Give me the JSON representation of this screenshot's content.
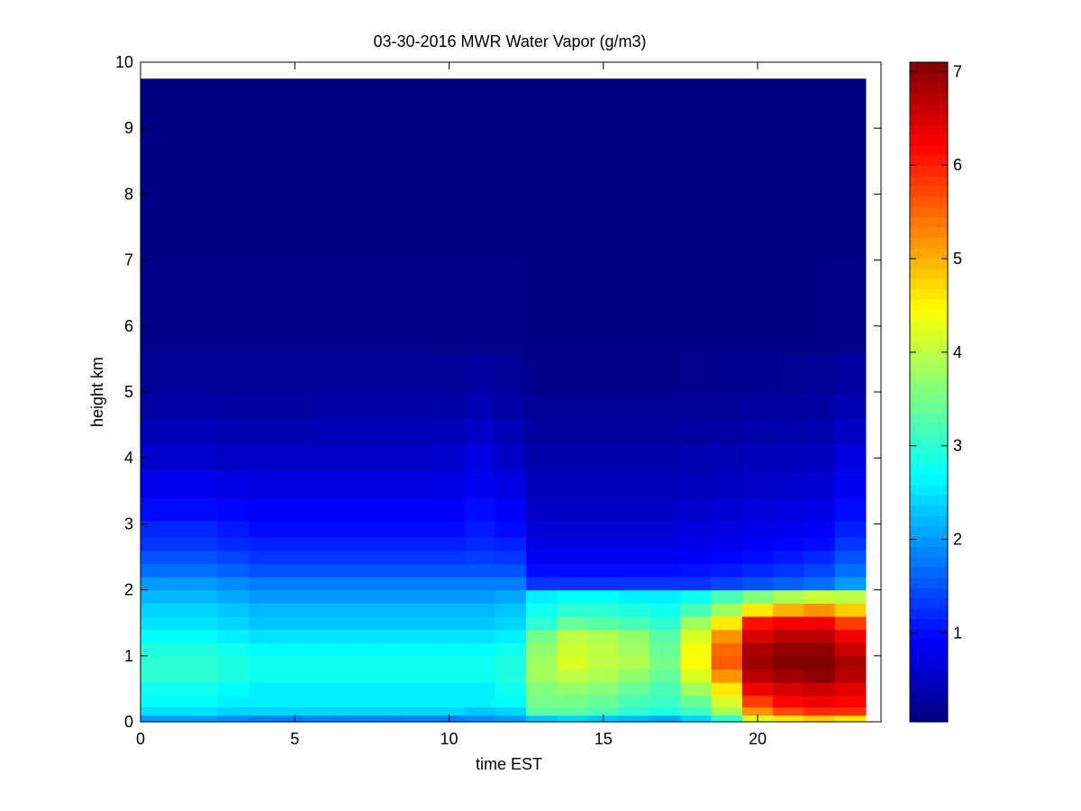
{
  "chart_data": {
    "type": "heatmap",
    "title": "03-30-2016 MWR Water Vapor (g/m3)",
    "xlabel": "time EST",
    "ylabel": "height km",
    "xlim": [
      0,
      24
    ],
    "ylim": [
      0,
      10
    ],
    "x_ticks": [
      0,
      5,
      10,
      15,
      20
    ],
    "y_ticks": [
      0,
      1,
      2,
      3,
      4,
      5,
      6,
      7,
      8,
      9,
      10
    ],
    "colorbar": {
      "colormap": "jet",
      "range": [
        0.05,
        7.1
      ],
      "ticks": [
        1,
        2,
        3,
        4,
        5,
        6,
        7
      ]
    },
    "grid": false,
    "time_bins": [
      0.0,
      1.0,
      2.0,
      3.0,
      4.0,
      5.0,
      6.0,
      7.0,
      8.0,
      9.0,
      10.0,
      11.0,
      12.0,
      13.0,
      14.0,
      15.0,
      16.0,
      17.0,
      18.0,
      19.0,
      20.0,
      21.0,
      22.0,
      23.0
    ],
    "height_levels_km": [
      0.05,
      0.15,
      0.3,
      0.5,
      0.7,
      0.9,
      1.1,
      1.3,
      1.5,
      1.7,
      1.9,
      2.1,
      2.3,
      2.5,
      2.7,
      2.9,
      3.2,
      3.6,
      4.0,
      4.4,
      4.8,
      5.2,
      6.0,
      8.0,
      9.75
    ],
    "water_vapor_g_m3": [
      [
        2.0,
        2.5,
        2.7,
        2.8,
        3.0,
        3.0,
        2.9,
        2.7,
        2.5,
        2.4,
        2.2,
        2.0,
        1.7,
        1.5,
        1.3,
        1.2,
        1.0,
        0.8,
        0.6,
        0.45,
        0.3,
        0.2,
        0.12,
        0.08,
        0.05
      ],
      [
        2.0,
        2.5,
        2.7,
        2.8,
        3.0,
        3.0,
        2.9,
        2.7,
        2.5,
        2.4,
        2.2,
        2.0,
        1.7,
        1.5,
        1.3,
        1.2,
        1.0,
        0.8,
        0.6,
        0.45,
        0.3,
        0.2,
        0.12,
        0.08,
        0.05
      ],
      [
        2.0,
        2.5,
        2.7,
        2.8,
        3.0,
        3.0,
        2.9,
        2.7,
        2.5,
        2.4,
        2.2,
        2.0,
        1.7,
        1.5,
        1.3,
        1.2,
        1.0,
        0.8,
        0.6,
        0.45,
        0.3,
        0.2,
        0.12,
        0.08,
        0.05
      ],
      [
        1.9,
        2.4,
        2.6,
        2.7,
        2.9,
        2.9,
        2.8,
        2.6,
        2.4,
        2.3,
        2.1,
        1.9,
        1.6,
        1.4,
        1.2,
        1.1,
        0.95,
        0.75,
        0.55,
        0.4,
        0.28,
        0.2,
        0.12,
        0.08,
        0.05
      ],
      [
        1.8,
        2.4,
        2.6,
        2.6,
        2.8,
        2.8,
        2.7,
        2.5,
        2.3,
        2.2,
        2.0,
        1.8,
        1.5,
        1.3,
        1.15,
        1.0,
        0.9,
        0.7,
        0.55,
        0.4,
        0.28,
        0.2,
        0.12,
        0.08,
        0.05
      ],
      [
        1.8,
        2.4,
        2.6,
        2.6,
        2.8,
        2.8,
        2.7,
        2.5,
        2.3,
        2.2,
        2.0,
        1.8,
        1.5,
        1.3,
        1.15,
        1.0,
        0.9,
        0.7,
        0.55,
        0.4,
        0.28,
        0.2,
        0.12,
        0.08,
        0.05
      ],
      [
        1.8,
        2.4,
        2.6,
        2.6,
        2.8,
        2.8,
        2.7,
        2.5,
        2.3,
        2.2,
        2.0,
        1.8,
        1.5,
        1.3,
        1.15,
        1.0,
        0.9,
        0.72,
        0.56,
        0.42,
        0.3,
        0.2,
        0.12,
        0.08,
        0.05
      ],
      [
        1.8,
        2.4,
        2.6,
        2.6,
        2.8,
        2.8,
        2.7,
        2.5,
        2.3,
        2.2,
        2.0,
        1.8,
        1.5,
        1.3,
        1.15,
        1.0,
        0.9,
        0.72,
        0.56,
        0.42,
        0.3,
        0.2,
        0.12,
        0.08,
        0.05
      ],
      [
        1.8,
        2.4,
        2.6,
        2.6,
        2.8,
        2.8,
        2.7,
        2.5,
        2.3,
        2.2,
        2.0,
        1.8,
        1.5,
        1.3,
        1.15,
        1.0,
        0.9,
        0.72,
        0.56,
        0.42,
        0.3,
        0.2,
        0.12,
        0.08,
        0.05
      ],
      [
        1.8,
        2.4,
        2.6,
        2.6,
        2.8,
        2.8,
        2.7,
        2.5,
        2.3,
        2.2,
        2.0,
        1.8,
        1.5,
        1.3,
        1.15,
        1.0,
        0.9,
        0.72,
        0.56,
        0.42,
        0.3,
        0.2,
        0.12,
        0.08,
        0.05
      ],
      [
        1.8,
        2.4,
        2.6,
        2.6,
        2.8,
        2.8,
        2.7,
        2.5,
        2.3,
        2.2,
        2.0,
        1.8,
        1.5,
        1.3,
        1.15,
        1.0,
        0.9,
        0.75,
        0.6,
        0.45,
        0.32,
        0.22,
        0.12,
        0.08,
        0.05
      ],
      [
        1.9,
        2.3,
        2.6,
        2.6,
        2.8,
        2.8,
        2.7,
        2.5,
        2.3,
        2.2,
        2.0,
        1.8,
        1.5,
        1.35,
        1.2,
        1.1,
        1.0,
        0.85,
        0.7,
        0.55,
        0.4,
        0.25,
        0.12,
        0.08,
        0.05
      ],
      [
        2.0,
        2.4,
        2.7,
        2.8,
        2.9,
        2.9,
        2.8,
        2.6,
        2.4,
        2.3,
        2.1,
        1.8,
        1.5,
        1.3,
        1.15,
        1.0,
        0.9,
        0.72,
        0.56,
        0.42,
        0.3,
        0.2,
        0.12,
        0.08,
        0.05
      ],
      [
        2.3,
        3.3,
        3.5,
        3.6,
        3.8,
        3.8,
        3.7,
        3.5,
        3.0,
        2.8,
        2.6,
        1.3,
        1.0,
        0.85,
        0.75,
        0.65,
        0.55,
        0.45,
        0.35,
        0.25,
        0.18,
        0.12,
        0.1,
        0.08,
        0.05
      ],
      [
        2.4,
        3.3,
        3.5,
        3.7,
        4.0,
        4.2,
        4.1,
        4.0,
        3.4,
        3.0,
        2.7,
        1.3,
        1.0,
        0.85,
        0.75,
        0.65,
        0.55,
        0.45,
        0.35,
        0.25,
        0.18,
        0.12,
        0.1,
        0.08,
        0.05
      ],
      [
        2.3,
        3.2,
        3.4,
        3.6,
        3.9,
        4.0,
        4.0,
        3.9,
        3.3,
        3.0,
        2.7,
        1.3,
        1.0,
        0.85,
        0.75,
        0.65,
        0.55,
        0.45,
        0.35,
        0.25,
        0.18,
        0.12,
        0.1,
        0.08,
        0.05
      ],
      [
        2.2,
        3.0,
        3.2,
        3.4,
        3.7,
        3.9,
        3.8,
        3.7,
        3.2,
        2.9,
        2.6,
        1.3,
        1.0,
        0.85,
        0.75,
        0.65,
        0.55,
        0.45,
        0.35,
        0.25,
        0.18,
        0.12,
        0.1,
        0.08,
        0.05
      ],
      [
        2.1,
        2.9,
        3.1,
        3.2,
        3.4,
        3.5,
        3.4,
        3.3,
        3.0,
        2.8,
        2.6,
        1.3,
        1.0,
        0.85,
        0.75,
        0.65,
        0.55,
        0.45,
        0.35,
        0.25,
        0.18,
        0.12,
        0.1,
        0.08,
        0.05
      ],
      [
        2.4,
        3.1,
        3.4,
        3.8,
        4.2,
        4.4,
        4.4,
        4.2,
        3.8,
        3.2,
        2.8,
        1.3,
        1.05,
        0.9,
        0.78,
        0.68,
        0.58,
        0.48,
        0.38,
        0.28,
        0.2,
        0.14,
        0.1,
        0.08,
        0.05
      ],
      [
        3.0,
        3.8,
        4.2,
        4.6,
        5.2,
        5.6,
        5.5,
        5.2,
        4.6,
        3.8,
        3.2,
        1.4,
        1.1,
        0.95,
        0.82,
        0.72,
        0.62,
        0.52,
        0.42,
        0.3,
        0.22,
        0.15,
        0.1,
        0.08,
        0.05
      ],
      [
        4.2,
        5.2,
        5.8,
        6.3,
        6.7,
        6.9,
        6.8,
        6.5,
        6.1,
        4.6,
        3.6,
        1.5,
        1.2,
        1.0,
        0.88,
        0.78,
        0.68,
        0.55,
        0.45,
        0.33,
        0.25,
        0.16,
        0.1,
        0.08,
        0.05
      ],
      [
        4.6,
        5.7,
        6.2,
        6.5,
        6.9,
        7.1,
        7.0,
        6.7,
        6.3,
        5.0,
        3.9,
        1.6,
        1.3,
        1.1,
        0.95,
        0.82,
        0.7,
        0.58,
        0.46,
        0.35,
        0.26,
        0.17,
        0.1,
        0.08,
        0.05
      ],
      [
        4.8,
        5.9,
        6.3,
        6.6,
        7.0,
        7.1,
        7.0,
        6.7,
        6.3,
        5.2,
        4.1,
        1.7,
        1.4,
        1.2,
        1.0,
        0.88,
        0.75,
        0.62,
        0.5,
        0.38,
        0.28,
        0.18,
        0.1,
        0.08,
        0.05
      ],
      [
        4.6,
        5.9,
        6.2,
        6.4,
        6.7,
        6.8,
        6.6,
        6.3,
        5.8,
        4.8,
        4.0,
        2.0,
        1.7,
        1.5,
        1.3,
        1.15,
        1.0,
        0.85,
        0.7,
        0.55,
        0.4,
        0.25,
        0.12,
        0.08,
        0.05
      ]
    ]
  }
}
